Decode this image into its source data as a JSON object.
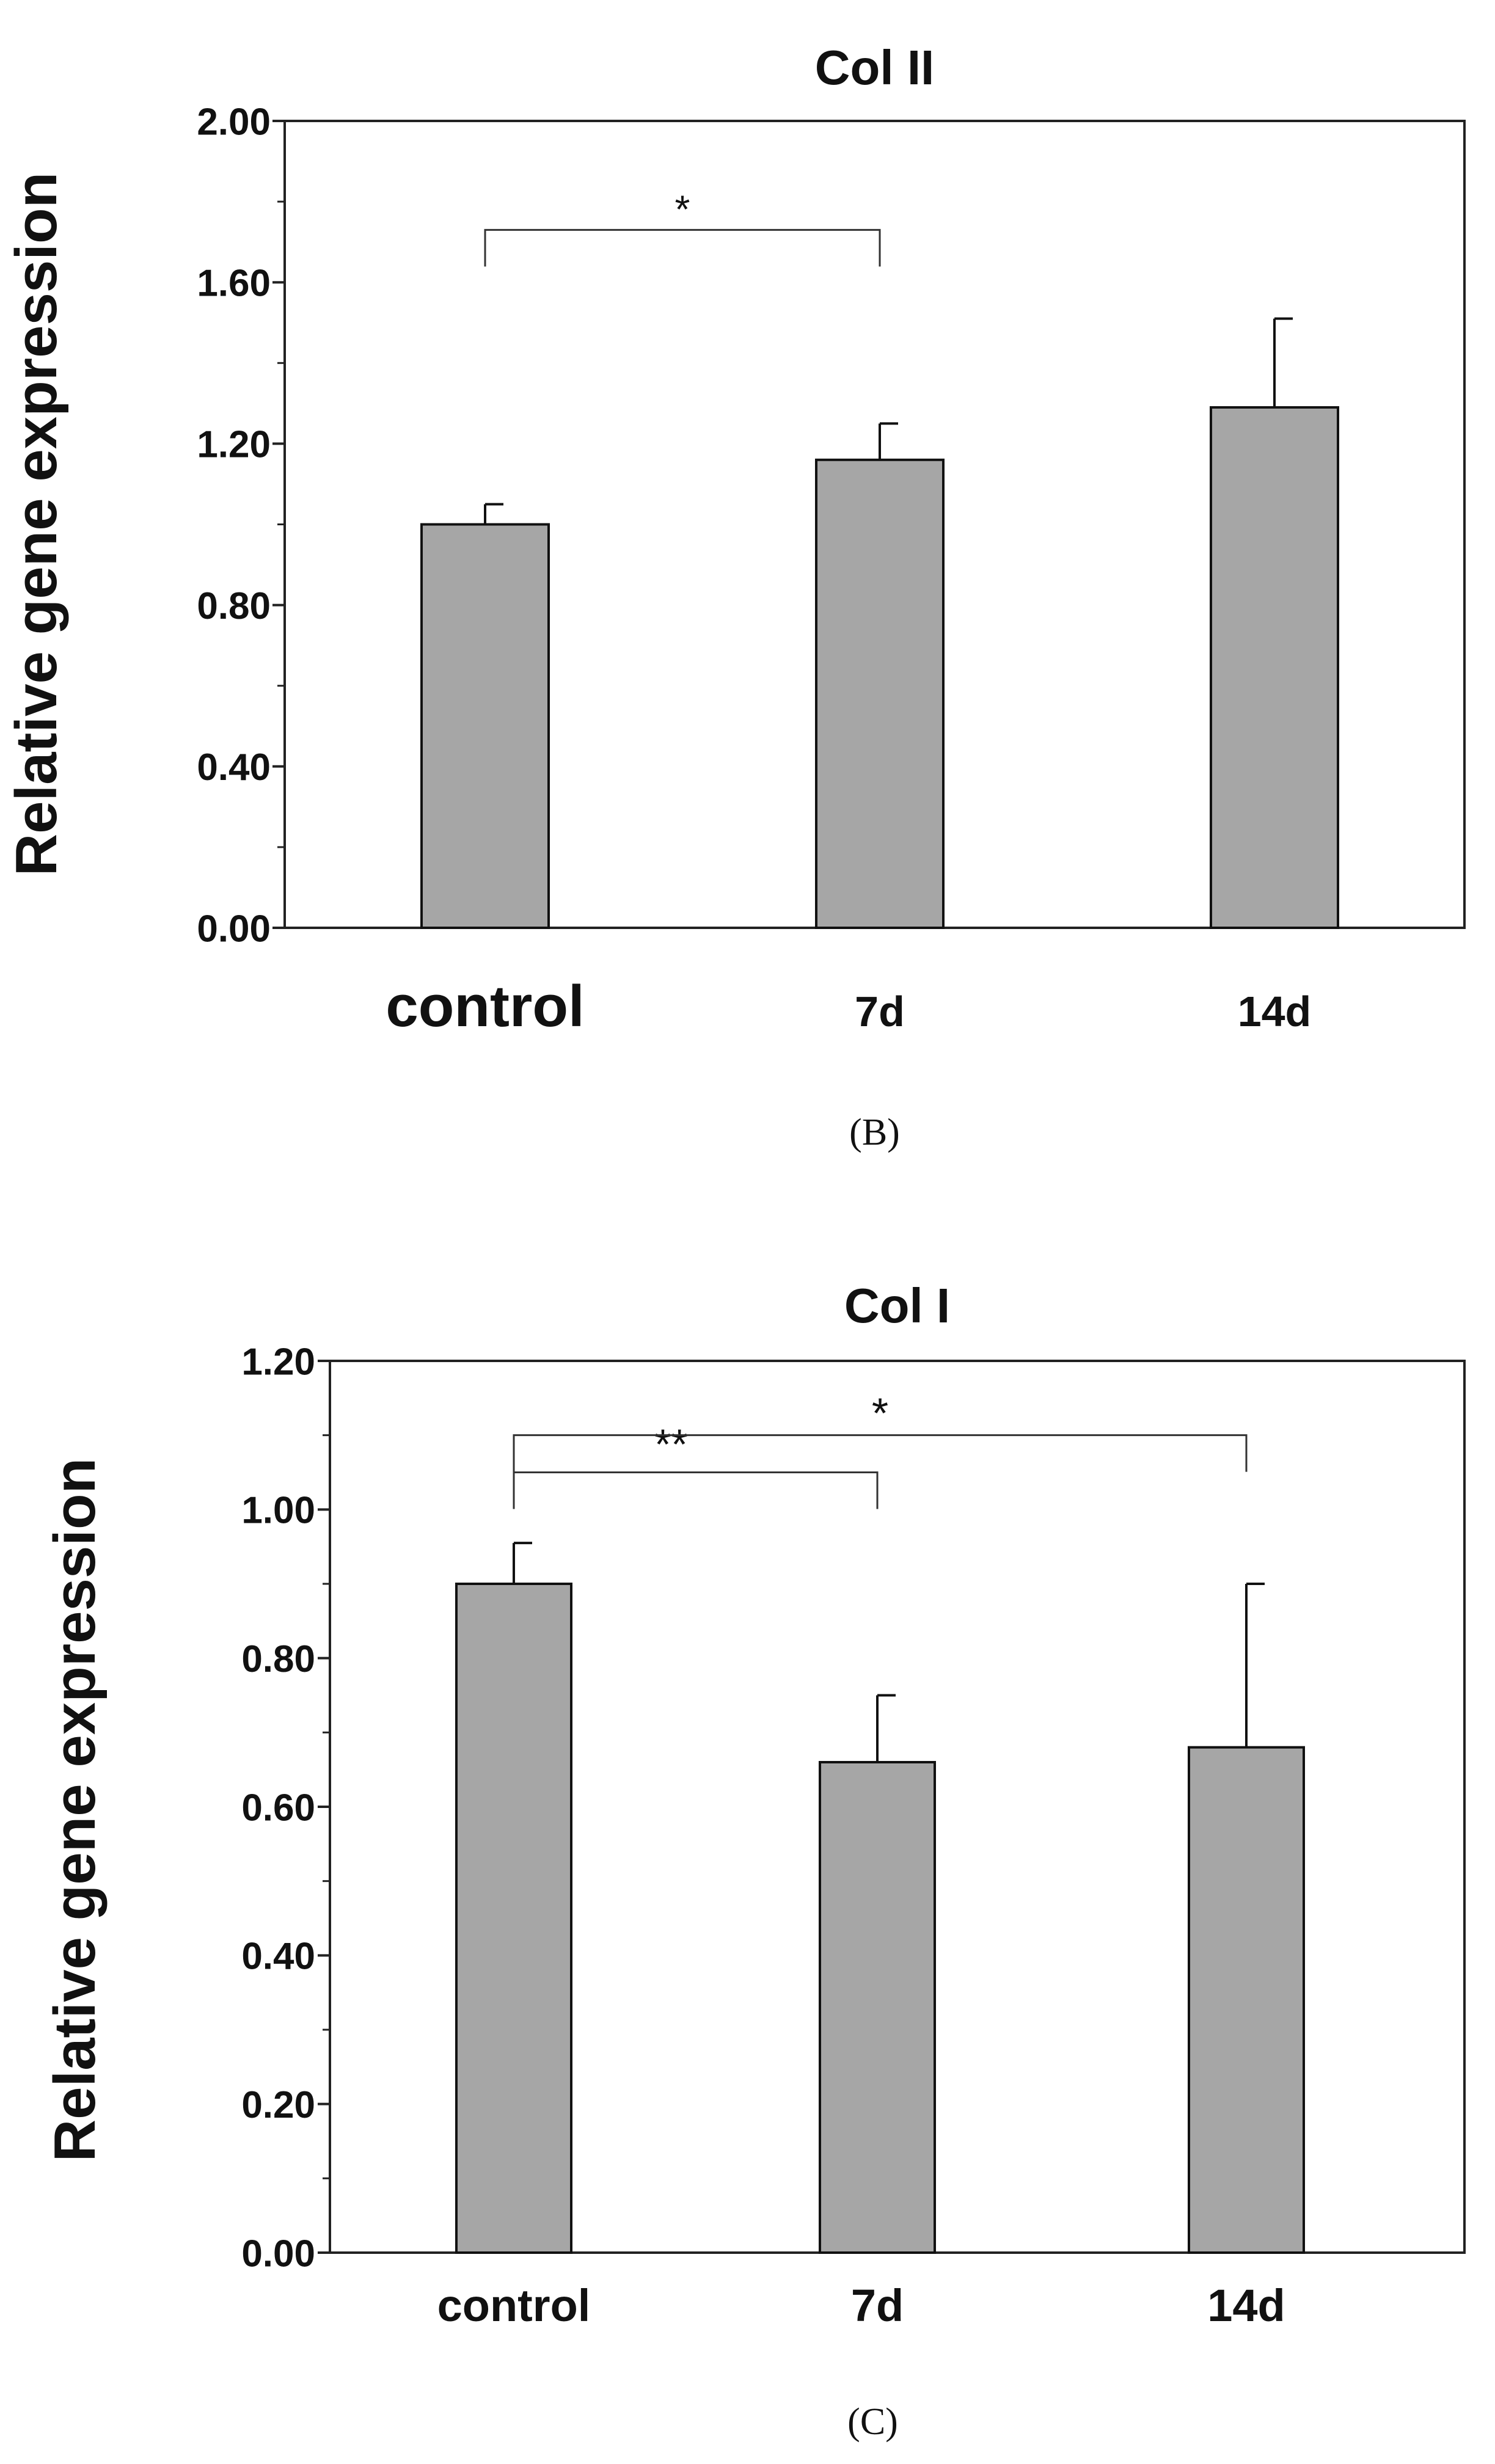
{
  "chart_data": [
    {
      "type": "bar",
      "title": "Col II",
      "panel_label": "(B)",
      "xlabel": "",
      "ylabel": "Relative gene expression",
      "categories": [
        "control",
        "7d",
        "14d"
      ],
      "values": [
        1.0,
        1.16,
        1.29
      ],
      "errors": [
        0.05,
        0.09,
        0.22
      ],
      "ylim": [
        0,
        2.0
      ],
      "yticks": [
        0.0,
        0.4,
        0.8,
        1.2,
        1.6,
        2.0
      ],
      "ytick_labels": [
        "0.00",
        "0.40",
        "0.80",
        "1.20",
        "1.60",
        "2.00"
      ],
      "bar_color": "#a6a6a6",
      "significance": [
        {
          "from": 0,
          "to": 1,
          "label": "*",
          "level": 1.73
        }
      ]
    },
    {
      "type": "bar",
      "title": "Col I",
      "panel_label": "(C)",
      "xlabel": "",
      "ylabel": "Relative gene expression",
      "categories": [
        "control",
        "7d",
        "14d"
      ],
      "values": [
        0.9,
        0.66,
        0.68
      ],
      "errors": [
        0.055,
        0.09,
        0.22
      ],
      "ylim": [
        0,
        1.2
      ],
      "yticks": [
        0.0,
        0.2,
        0.4,
        0.6,
        0.8,
        1.0,
        1.2
      ],
      "ytick_labels": [
        "0.00",
        "0.20",
        "0.40",
        "0.60",
        "0.80",
        "1.00",
        "1.20"
      ],
      "bar_color": "#a6a6a6",
      "significance": [
        {
          "from": 0,
          "to": 1,
          "label": "**",
          "level": 1.05
        },
        {
          "from": 0,
          "to": 2,
          "label": "*",
          "level": 1.1
        }
      ]
    }
  ]
}
